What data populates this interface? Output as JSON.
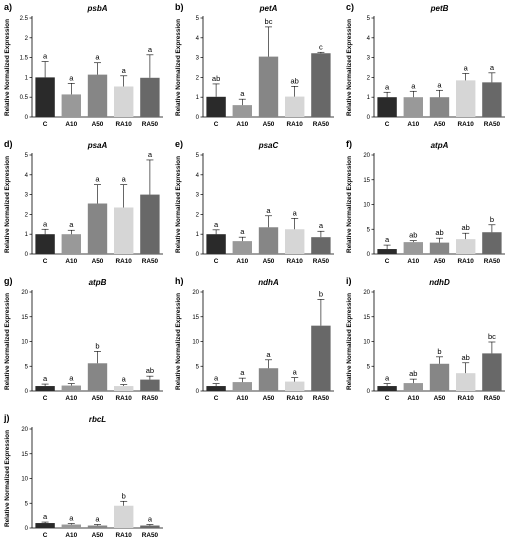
{
  "chart_data": [
    {
      "type": "bar",
      "panel_label": "a)",
      "title": "psbA",
      "ylabel": "Relative Normalized Expression",
      "categories": [
        "C",
        "A10",
        "A50",
        "RA10",
        "RA50"
      ],
      "yticks": [
        0,
        0.5,
        1,
        1.5,
        2,
        2.5
      ],
      "ylim": [
        0,
        2.5
      ],
      "values": [
        1.0,
        0.57,
        1.07,
        0.77,
        0.99
      ],
      "errors": [
        0.4,
        0.28,
        0.3,
        0.27,
        0.58
      ],
      "letters": [
        "a",
        "a",
        "a",
        "a",
        "a"
      ]
    },
    {
      "type": "bar",
      "panel_label": "b)",
      "title": "petA",
      "ylabel": "Relative Normalized Expression",
      "categories": [
        "C",
        "A10",
        "A50",
        "RA10",
        "RA50"
      ],
      "yticks": [
        0,
        1,
        2,
        3,
        4,
        5
      ],
      "ylim": [
        0,
        5
      ],
      "values": [
        1.02,
        0.6,
        3.05,
        1.03,
        3.22
      ],
      "errors": [
        0.65,
        0.3,
        1.5,
        0.52,
        0.05
      ],
      "letters": [
        "ab",
        "a",
        "bc",
        "ab",
        "c"
      ]
    },
    {
      "type": "bar",
      "panel_label": "c)",
      "title": "petB",
      "ylabel": "Relative Normalized Expression",
      "categories": [
        "C",
        "A10",
        "A50",
        "RA10",
        "RA50"
      ],
      "yticks": [
        0,
        1,
        2,
        3,
        4,
        5
      ],
      "ylim": [
        0,
        5
      ],
      "values": [
        1.0,
        1.0,
        1.0,
        1.85,
        1.75
      ],
      "errors": [
        0.25,
        0.3,
        0.35,
        0.35,
        0.48
      ],
      "letters": [
        "a",
        "a",
        "a",
        "a",
        "a"
      ]
    },
    {
      "type": "bar",
      "panel_label": "d)",
      "title": "psaA",
      "ylabel": "Relative Normalized Expression",
      "categories": [
        "C",
        "A10",
        "A50",
        "RA10",
        "RA50"
      ],
      "yticks": [
        0,
        1,
        2,
        3,
        4,
        5
      ],
      "ylim": [
        0,
        5
      ],
      "values": [
        1.0,
        1.0,
        2.55,
        2.35,
        3.0
      ],
      "errors": [
        0.25,
        0.2,
        0.95,
        1.15,
        1.75
      ],
      "letters": [
        "a",
        "a",
        "a",
        "a",
        "a"
      ]
    },
    {
      "type": "bar",
      "panel_label": "e)",
      "title": "psaC",
      "ylabel": "Relative Normalized Expression",
      "categories": [
        "C",
        "A10",
        "A50",
        "RA10",
        "RA50"
      ],
      "yticks": [
        0,
        1,
        2,
        3,
        4,
        5
      ],
      "ylim": [
        0,
        5
      ],
      "values": [
        1.0,
        0.65,
        1.35,
        1.25,
        0.85
      ],
      "errors": [
        0.22,
        0.2,
        0.58,
        0.55,
        0.3
      ],
      "letters": [
        "a",
        "a",
        "a",
        "a",
        "a"
      ]
    },
    {
      "type": "bar",
      "panel_label": "f)",
      "title": "atpA",
      "ylabel": "Relative Normalized Expression",
      "categories": [
        "C",
        "A10",
        "A50",
        "RA10",
        "RA50"
      ],
      "yticks": [
        0,
        5,
        10,
        15,
        20
      ],
      "ylim": [
        0,
        20
      ],
      "values": [
        1.0,
        2.4,
        2.3,
        3.0,
        4.4
      ],
      "errors": [
        0.8,
        0.3,
        0.9,
        1.2,
        1.5
      ],
      "letters": [
        "a",
        "ab",
        "ab",
        "ab",
        "b"
      ]
    },
    {
      "type": "bar",
      "panel_label": "g)",
      "title": "atpB",
      "ylabel": "Relative Normalized Expression",
      "categories": [
        "C",
        "A10",
        "A50",
        "RA10",
        "RA50"
      ],
      "yticks": [
        0,
        5,
        10,
        15,
        20
      ],
      "ylim": [
        0,
        20
      ],
      "values": [
        1.0,
        1.1,
        5.6,
        1.0,
        2.3
      ],
      "errors": [
        0.4,
        0.4,
        2.4,
        0.3,
        0.7
      ],
      "letters": [
        "a",
        "a",
        "b",
        "a",
        "ab"
      ]
    },
    {
      "type": "bar",
      "panel_label": "h)",
      "title": "ndhA",
      "ylabel": "Relative Normalized Expression",
      "categories": [
        "C",
        "A10",
        "A50",
        "RA10",
        "RA50"
      ],
      "yticks": [
        0,
        5,
        10,
        15,
        20
      ],
      "ylim": [
        0,
        20
      ],
      "values": [
        1.0,
        1.8,
        4.6,
        1.9,
        13.2
      ],
      "errors": [
        0.5,
        0.8,
        1.7,
        0.8,
        5.3
      ],
      "letters": [
        "a",
        "a",
        "a",
        "a",
        "b"
      ]
    },
    {
      "type": "bar",
      "panel_label": "i)",
      "title": "ndhD",
      "ylabel": "Relative Normalized Expression",
      "categories": [
        "C",
        "A10",
        "A50",
        "RA10",
        "RA50"
      ],
      "yticks": [
        0,
        5,
        10,
        15,
        20
      ],
      "ylim": [
        0,
        20
      ],
      "values": [
        1.0,
        1.6,
        5.5,
        3.6,
        7.6
      ],
      "errors": [
        0.5,
        0.8,
        1.4,
        2.1,
        2.3
      ],
      "letters": [
        "a",
        "ab",
        "b",
        "ab",
        "bc"
      ]
    },
    {
      "type": "bar",
      "panel_label": "j)",
      "title": "rbcL",
      "ylabel": "Relative Normalized Expression",
      "categories": [
        "C",
        "A10",
        "A50",
        "RA10",
        "RA50"
      ],
      "yticks": [
        0,
        5,
        10,
        15,
        20
      ],
      "ylim": [
        0,
        20
      ],
      "values": [
        1.0,
        0.7,
        0.5,
        4.5,
        0.5
      ],
      "errors": [
        0.2,
        0.2,
        0.2,
        0.9,
        0.2
      ],
      "letters": [
        "a",
        "a",
        "a",
        "b",
        "a"
      ]
    }
  ],
  "bar_colors": [
    "#2a2a2a",
    "#999999",
    "#868686",
    "#d6d6d6",
    "#686868"
  ]
}
